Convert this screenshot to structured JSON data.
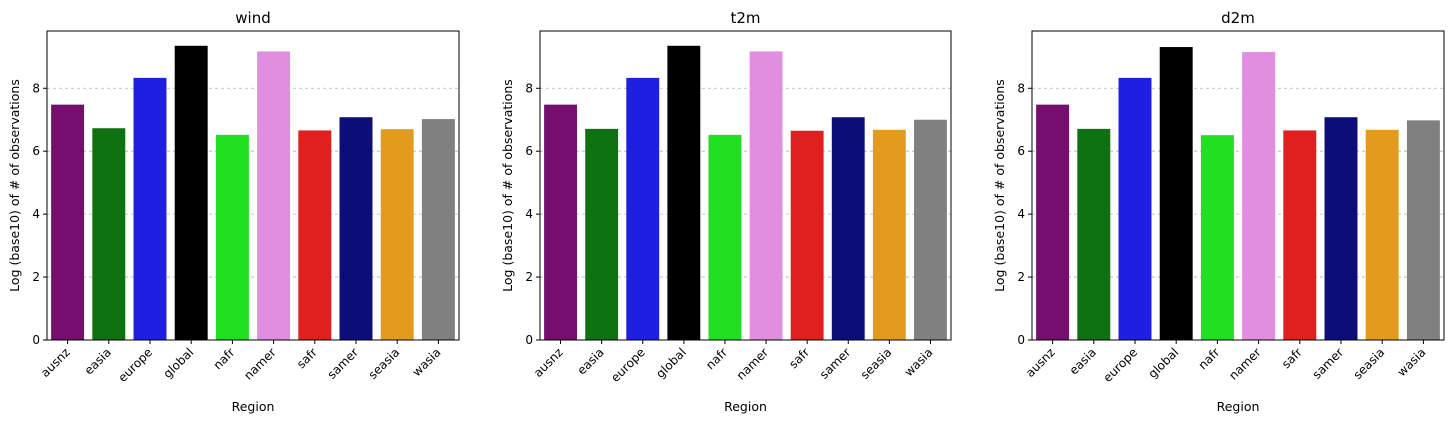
{
  "chart_data": [
    {
      "type": "bar",
      "title": "wind",
      "xlabel": "Region",
      "ylabel": "Log (base10) of # of observations",
      "categories": [
        "ausnz",
        "easia",
        "europe",
        "global",
        "nafr",
        "namer",
        "safr",
        "samer",
        "seasia",
        "wasia"
      ],
      "values": [
        7.48,
        6.73,
        8.33,
        9.35,
        6.52,
        9.17,
        6.66,
        7.08,
        6.7,
        7.02
      ],
      "colors": [
        "#750e6f",
        "#0d720f",
        "#1f1fe2",
        "#000000",
        "#21e021",
        "#e18ee1",
        "#e01f1f",
        "#0d0d7a",
        "#e39b1e",
        "#808080"
      ],
      "ylim": [
        0,
        9.82
      ],
      "yticks": [
        "0",
        "2",
        "4",
        "6",
        "8"
      ],
      "grid": "y-dashed",
      "legend": "none"
    },
    {
      "type": "bar",
      "title": "t2m",
      "xlabel": "Region",
      "ylabel": "Log (base10) of # of observations",
      "categories": [
        "ausnz",
        "easia",
        "europe",
        "global",
        "nafr",
        "namer",
        "safr",
        "samer",
        "seasia",
        "wasia"
      ],
      "values": [
        7.48,
        6.71,
        8.33,
        9.35,
        6.52,
        9.17,
        6.65,
        7.08,
        6.68,
        7.0
      ],
      "colors": [
        "#750e6f",
        "#0d720f",
        "#1f1fe2",
        "#000000",
        "#21e021",
        "#e18ee1",
        "#e01f1f",
        "#0d0d7a",
        "#e39b1e",
        "#808080"
      ],
      "ylim": [
        0,
        9.82
      ],
      "yticks": [
        "0",
        "2",
        "4",
        "6",
        "8"
      ],
      "grid": "y-dashed",
      "legend": "none"
    },
    {
      "type": "bar",
      "title": "d2m",
      "xlabel": "Region",
      "ylabel": "Log (base10) of # of observations",
      "categories": [
        "ausnz",
        "easia",
        "europe",
        "global",
        "nafr",
        "namer",
        "safr",
        "samer",
        "seasia",
        "wasia"
      ],
      "values": [
        7.48,
        6.71,
        8.33,
        9.31,
        6.51,
        9.15,
        6.66,
        7.08,
        6.68,
        6.98
      ],
      "colors": [
        "#750e6f",
        "#0d720f",
        "#1f1fe2",
        "#000000",
        "#21e021",
        "#e18ee1",
        "#e01f1f",
        "#0d0d7a",
        "#e39b1e",
        "#808080"
      ],
      "ylim": [
        0,
        9.82
      ],
      "yticks": [
        "0",
        "2",
        "4",
        "6",
        "8"
      ],
      "grid": "y-dashed",
      "legend": "none"
    }
  ]
}
